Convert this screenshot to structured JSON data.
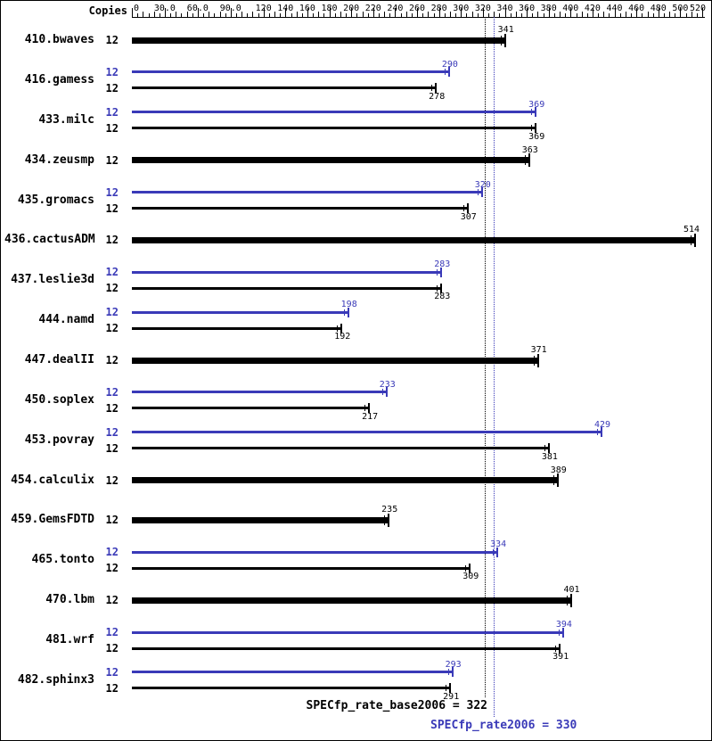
{
  "header": {
    "copies_label": "Copies"
  },
  "colors": {
    "peak": "#3a3ab8",
    "base": "#000000"
  },
  "chart_data": {
    "type": "bar",
    "orientation": "horizontal",
    "axis": {
      "min": 0,
      "max": 520,
      "position": "top",
      "ticks": [
        {
          "value": 0,
          "label": "0"
        },
        {
          "value": 30,
          "label": "30.0"
        },
        {
          "value": 60,
          "label": "60.0"
        },
        {
          "value": 90,
          "label": "90.0"
        },
        {
          "value": 120,
          "label": "120"
        },
        {
          "value": 140,
          "label": "140"
        },
        {
          "value": 160,
          "label": "160"
        },
        {
          "value": 180,
          "label": "180"
        },
        {
          "value": 200,
          "label": "200"
        },
        {
          "value": 220,
          "label": "220"
        },
        {
          "value": 240,
          "label": "240"
        },
        {
          "value": 260,
          "label": "260"
        },
        {
          "value": 280,
          "label": "280"
        },
        {
          "value": 300,
          "label": "300"
        },
        {
          "value": 320,
          "label": "320"
        },
        {
          "value": 340,
          "label": "340"
        },
        {
          "value": 360,
          "label": "360"
        },
        {
          "value": 380,
          "label": "380"
        },
        {
          "value": 400,
          "label": "400"
        },
        {
          "value": 420,
          "label": "420"
        },
        {
          "value": 440,
          "label": "440"
        },
        {
          "value": 460,
          "label": "460"
        },
        {
          "value": 480,
          "label": "480"
        },
        {
          "value": 500,
          "label": "500"
        },
        {
          "value": 520,
          "label": "520"
        }
      ]
    },
    "benchmarks": [
      {
        "name": "410.bwaves",
        "copies": 12,
        "peak": null,
        "base": 341
      },
      {
        "name": "416.gamess",
        "copies": 12,
        "peak": 290,
        "base": 278
      },
      {
        "name": "433.milc",
        "copies": 12,
        "peak": 369,
        "base": 369
      },
      {
        "name": "434.zeusmp",
        "copies": 12,
        "peak": null,
        "base": 363
      },
      {
        "name": "435.gromacs",
        "copies": 12,
        "peak": 320,
        "base": 307
      },
      {
        "name": "436.cactusADM",
        "copies": 12,
        "peak": null,
        "base": 514
      },
      {
        "name": "437.leslie3d",
        "copies": 12,
        "peak": 283,
        "base": 283
      },
      {
        "name": "444.namd",
        "copies": 12,
        "peak": 198,
        "base": 192
      },
      {
        "name": "447.dealII",
        "copies": 12,
        "peak": null,
        "base": 371
      },
      {
        "name": "450.soplex",
        "copies": 12,
        "peak": 233,
        "base": 217
      },
      {
        "name": "453.povray",
        "copies": 12,
        "peak": 429,
        "base": 381
      },
      {
        "name": "454.calculix",
        "copies": 12,
        "peak": null,
        "base": 389
      },
      {
        "name": "459.GemsFDTD",
        "copies": 12,
        "peak": null,
        "base": 235
      },
      {
        "name": "465.tonto",
        "copies": 12,
        "peak": 334,
        "base": 309
      },
      {
        "name": "470.lbm",
        "copies": 12,
        "peak": null,
        "base": 401
      },
      {
        "name": "481.wrf",
        "copies": 12,
        "peak": 394,
        "base": 391
      },
      {
        "name": "482.sphinx3",
        "copies": 12,
        "peak": 293,
        "base": 291
      }
    ],
    "means": {
      "base": {
        "label": "SPECfp_rate_base2006 = 322",
        "value": 322
      },
      "peak": {
        "label": "SPECfp_rate2006 = 330",
        "value": 330
      }
    }
  }
}
